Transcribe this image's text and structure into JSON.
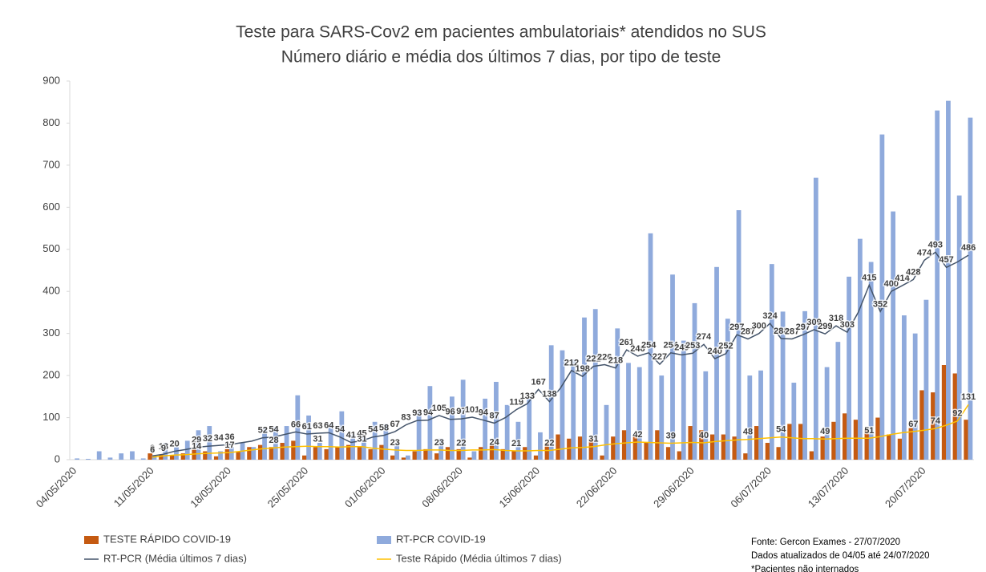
{
  "chart_data": {
    "type": "bar",
    "title": "Teste para SARS-Cov2 em pacientes ambulatoriais* atendidos no SUS",
    "subtitle": "Número diário e média dos últimos 7 dias, por tipo de teste",
    "categories": [
      "04/05/2020",
      null,
      null,
      null,
      null,
      null,
      null,
      "11/05/2020",
      null,
      null,
      null,
      null,
      null,
      null,
      "18/05/2020",
      null,
      null,
      null,
      null,
      null,
      null,
      "25/05/2020",
      null,
      null,
      null,
      null,
      null,
      null,
      "01/06/2020",
      null,
      null,
      null,
      null,
      null,
      null,
      "08/06/2020",
      null,
      null,
      null,
      null,
      null,
      null,
      "15/06/2020",
      null,
      null,
      null,
      null,
      null,
      null,
      "22/06/2020",
      null,
      null,
      null,
      null,
      null,
      null,
      "29/06/2020",
      null,
      null,
      null,
      null,
      null,
      null,
      "06/07/2020",
      null,
      null,
      null,
      null,
      null,
      null,
      "13/07/2020",
      null,
      null,
      null,
      null,
      null,
      null,
      "20/07/2020",
      null,
      null,
      null,
      null
    ],
    "ylim": [
      0,
      900
    ],
    "yticks": [
      0,
      100,
      200,
      300,
      400,
      500,
      600,
      700,
      800,
      900
    ],
    "grid": false,
    "legend": "bottom",
    "series": [
      {
        "name": "TESTE RÁPIDO COVID-19",
        "type": "bar",
        "color": "#c55a11",
        "values": [
          0,
          0,
          0,
          0,
          0,
          0,
          0,
          15,
          12,
          10,
          15,
          25,
          20,
          8,
          25,
          20,
          30,
          35,
          30,
          40,
          45,
          10,
          30,
          25,
          30,
          35,
          30,
          25,
          35,
          10,
          5,
          20,
          25,
          15,
          30,
          25,
          5,
          30,
          35,
          25,
          20,
          30,
          10,
          40,
          60,
          50,
          55,
          50,
          10,
          55,
          70,
          55,
          40,
          70,
          30,
          20,
          80,
          70,
          60,
          60,
          55,
          15,
          80,
          40,
          30,
          85,
          85,
          20,
          55,
          90,
          110,
          95,
          70,
          100,
          60,
          50,
          75,
          165,
          160,
          225,
          205,
          95
        ]
      },
      {
        "name": "RT-PCR COVID-19",
        "type": "bar",
        "color": "#8faadc",
        "values": [
          3,
          2,
          20,
          5,
          15,
          20,
          3,
          10,
          40,
          30,
          45,
          70,
          80,
          20,
          30,
          40,
          30,
          75,
          78,
          80,
          153,
          105,
          40,
          85,
          115,
          60,
          55,
          90,
          85,
          40,
          10,
          115,
          175,
          50,
          150,
          190,
          20,
          145,
          185,
          130,
          90,
          145,
          65,
          272,
          260,
          238,
          338,
          358,
          130,
          312,
          230,
          220,
          538,
          200,
          440,
          283,
          372,
          210,
          458,
          335,
          593,
          200,
          212,
          465,
          352,
          183,
          353,
          670,
          220,
          280,
          435,
          525,
          470,
          773,
          590,
          343,
          300,
          380,
          830,
          853,
          628,
          813
        ]
      },
      {
        "name": "RT-PCR (Média últimos 7 dias)",
        "type": "line",
        "color": "#44546a",
        "values": [
          null,
          null,
          null,
          null,
          null,
          null,
          null,
          9,
          13,
          20,
          24,
          29,
          32,
          34,
          36,
          40,
          44,
          52,
          54,
          60,
          66,
          61,
          63,
          64,
          54,
          41,
          45,
          54,
          58,
          67,
          83,
          93,
          94,
          105,
          96,
          97,
          101,
          94,
          87,
          100,
          119,
          133,
          167,
          138,
          170,
          212,
          198,
          222,
          226,
          218,
          261,
          246,
          254,
          227,
          254,
          249,
          253,
          274,
          240,
          252,
          297,
          287,
          300,
          324,
          288,
          287,
          297,
          309,
          299,
          318,
          303,
          350,
          415,
          352,
          400,
          414,
          428,
          474,
          493,
          457,
          470,
          486
        ],
        "value_labels": [
          null,
          null,
          null,
          null,
          null,
          null,
          null,
          "9",
          "13",
          "20",
          null,
          "29",
          "32",
          "34",
          "36",
          null,
          null,
          "52",
          "54",
          null,
          "66",
          "61",
          "63",
          "64",
          "54",
          "41",
          "45",
          "54",
          "58",
          "67",
          "83",
          "93",
          "94",
          "105",
          "96",
          "97",
          "101",
          "94",
          "87",
          null,
          "119",
          "133",
          "167",
          "138",
          null,
          "212",
          "198",
          "222",
          "226",
          "218",
          "261",
          "246",
          "254",
          "227",
          "254",
          "249",
          "253",
          "274",
          "240",
          "252",
          "297",
          "287",
          "300",
          "324",
          "288",
          "287",
          "297",
          "309",
          "299",
          "318",
          "303",
          null,
          "415",
          "352",
          "400",
          "414",
          "428",
          "474",
          "493",
          "457",
          null,
          "486"
        ]
      },
      {
        "name": "Teste Rápido (Média últimos 7 dias)",
        "type": "line",
        "color": "#ffc000",
        "values": [
          null,
          null,
          null,
          null,
          null,
          null,
          null,
          6,
          9,
          11,
          12,
          14,
          15,
          16,
          17,
          20,
          23,
          26,
          28,
          30,
          31,
          32,
          31,
          31,
          30,
          31,
          31,
          27,
          25,
          23,
          22,
          22,
          23,
          23,
          22,
          22,
          23,
          23,
          24,
          22,
          21,
          21,
          22,
          22,
          25,
          28,
          29,
          31,
          35,
          38,
          40,
          42,
          41,
          40,
          39,
          40,
          41,
          40,
          43,
          45,
          47,
          48,
          50,
          52,
          54,
          52,
          50,
          50,
          49,
          50,
          51,
          51,
          51,
          55,
          60,
          64,
          67,
          70,
          74,
          82,
          92,
          131
        ],
        "value_labels": [
          null,
          null,
          null,
          null,
          null,
          null,
          null,
          "6",
          "9",
          null,
          null,
          "14",
          null,
          null,
          "17",
          null,
          null,
          null,
          "28",
          null,
          null,
          null,
          "31",
          null,
          null,
          null,
          "31",
          null,
          null,
          "23",
          null,
          null,
          null,
          "23",
          null,
          "22",
          null,
          null,
          "24",
          null,
          "21",
          null,
          null,
          "22",
          null,
          null,
          null,
          "31",
          null,
          null,
          null,
          "42",
          null,
          null,
          "39",
          null,
          null,
          "40",
          null,
          null,
          null,
          "48",
          null,
          null,
          "54",
          null,
          null,
          null,
          "49",
          null,
          null,
          null,
          "51",
          null,
          null,
          null,
          "67",
          null,
          "74",
          null,
          "92",
          "131"
        ]
      }
    ],
    "notes": [
      "Fonte: Gercon Exames - 27/07/2020",
      "Dados atualizados de 04/05 até 24/07/2020",
      "*Pacientes não internados"
    ]
  }
}
